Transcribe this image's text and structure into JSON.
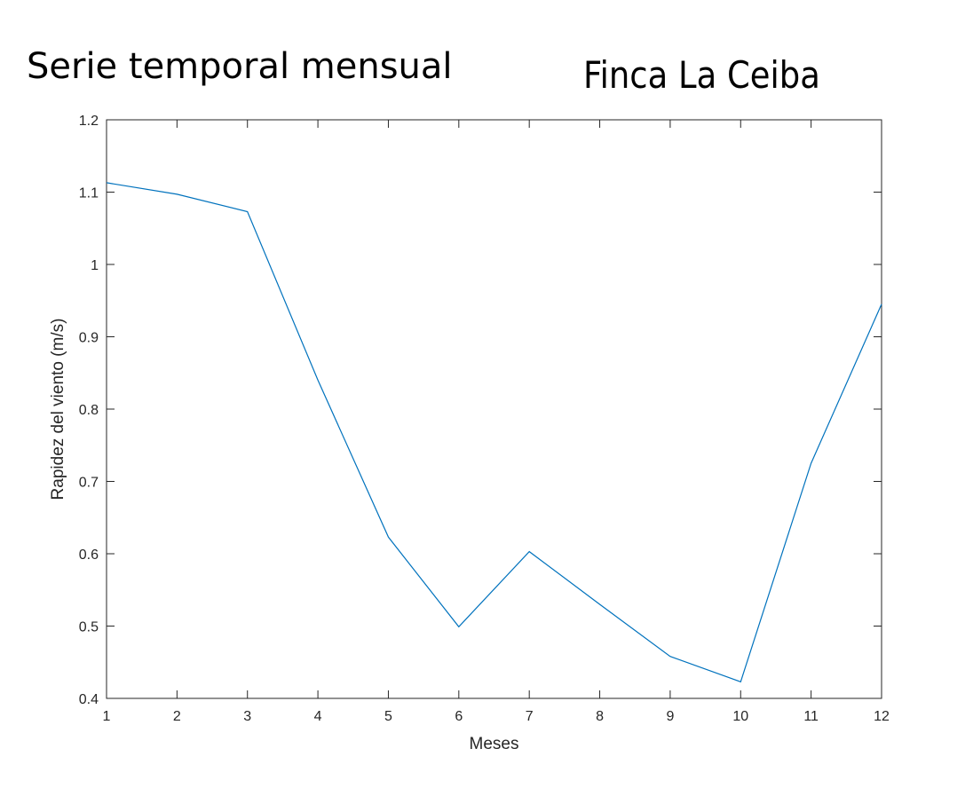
{
  "titles": {
    "left": "Serie temporal mensual",
    "right": "Finca La Ceiba"
  },
  "chart_data": {
    "type": "line",
    "xlabel": "Meses",
    "ylabel": "Rapidez del viento (m/s)",
    "xlim": [
      1,
      12
    ],
    "ylim": [
      0.4,
      1.2
    ],
    "xticks": [
      "1",
      "2",
      "3",
      "4",
      "5",
      "6",
      "7",
      "8",
      "9",
      "10",
      "11",
      "12"
    ],
    "yticks": [
      "0.4",
      "0.5",
      "0.6",
      "0.7",
      "0.8",
      "0.9",
      "1",
      "1.1",
      "1.2"
    ],
    "grid": false,
    "line_color": "#0072BD",
    "series": [
      {
        "x": [
          1,
          2,
          3,
          4,
          5,
          6,
          7,
          8,
          9,
          10,
          11,
          12
        ],
        "values": [
          1.113,
          1.097,
          1.073,
          0.84,
          0.623,
          0.499,
          0.603,
          0.53,
          0.458,
          0.423,
          0.725,
          0.945
        ]
      }
    ]
  }
}
